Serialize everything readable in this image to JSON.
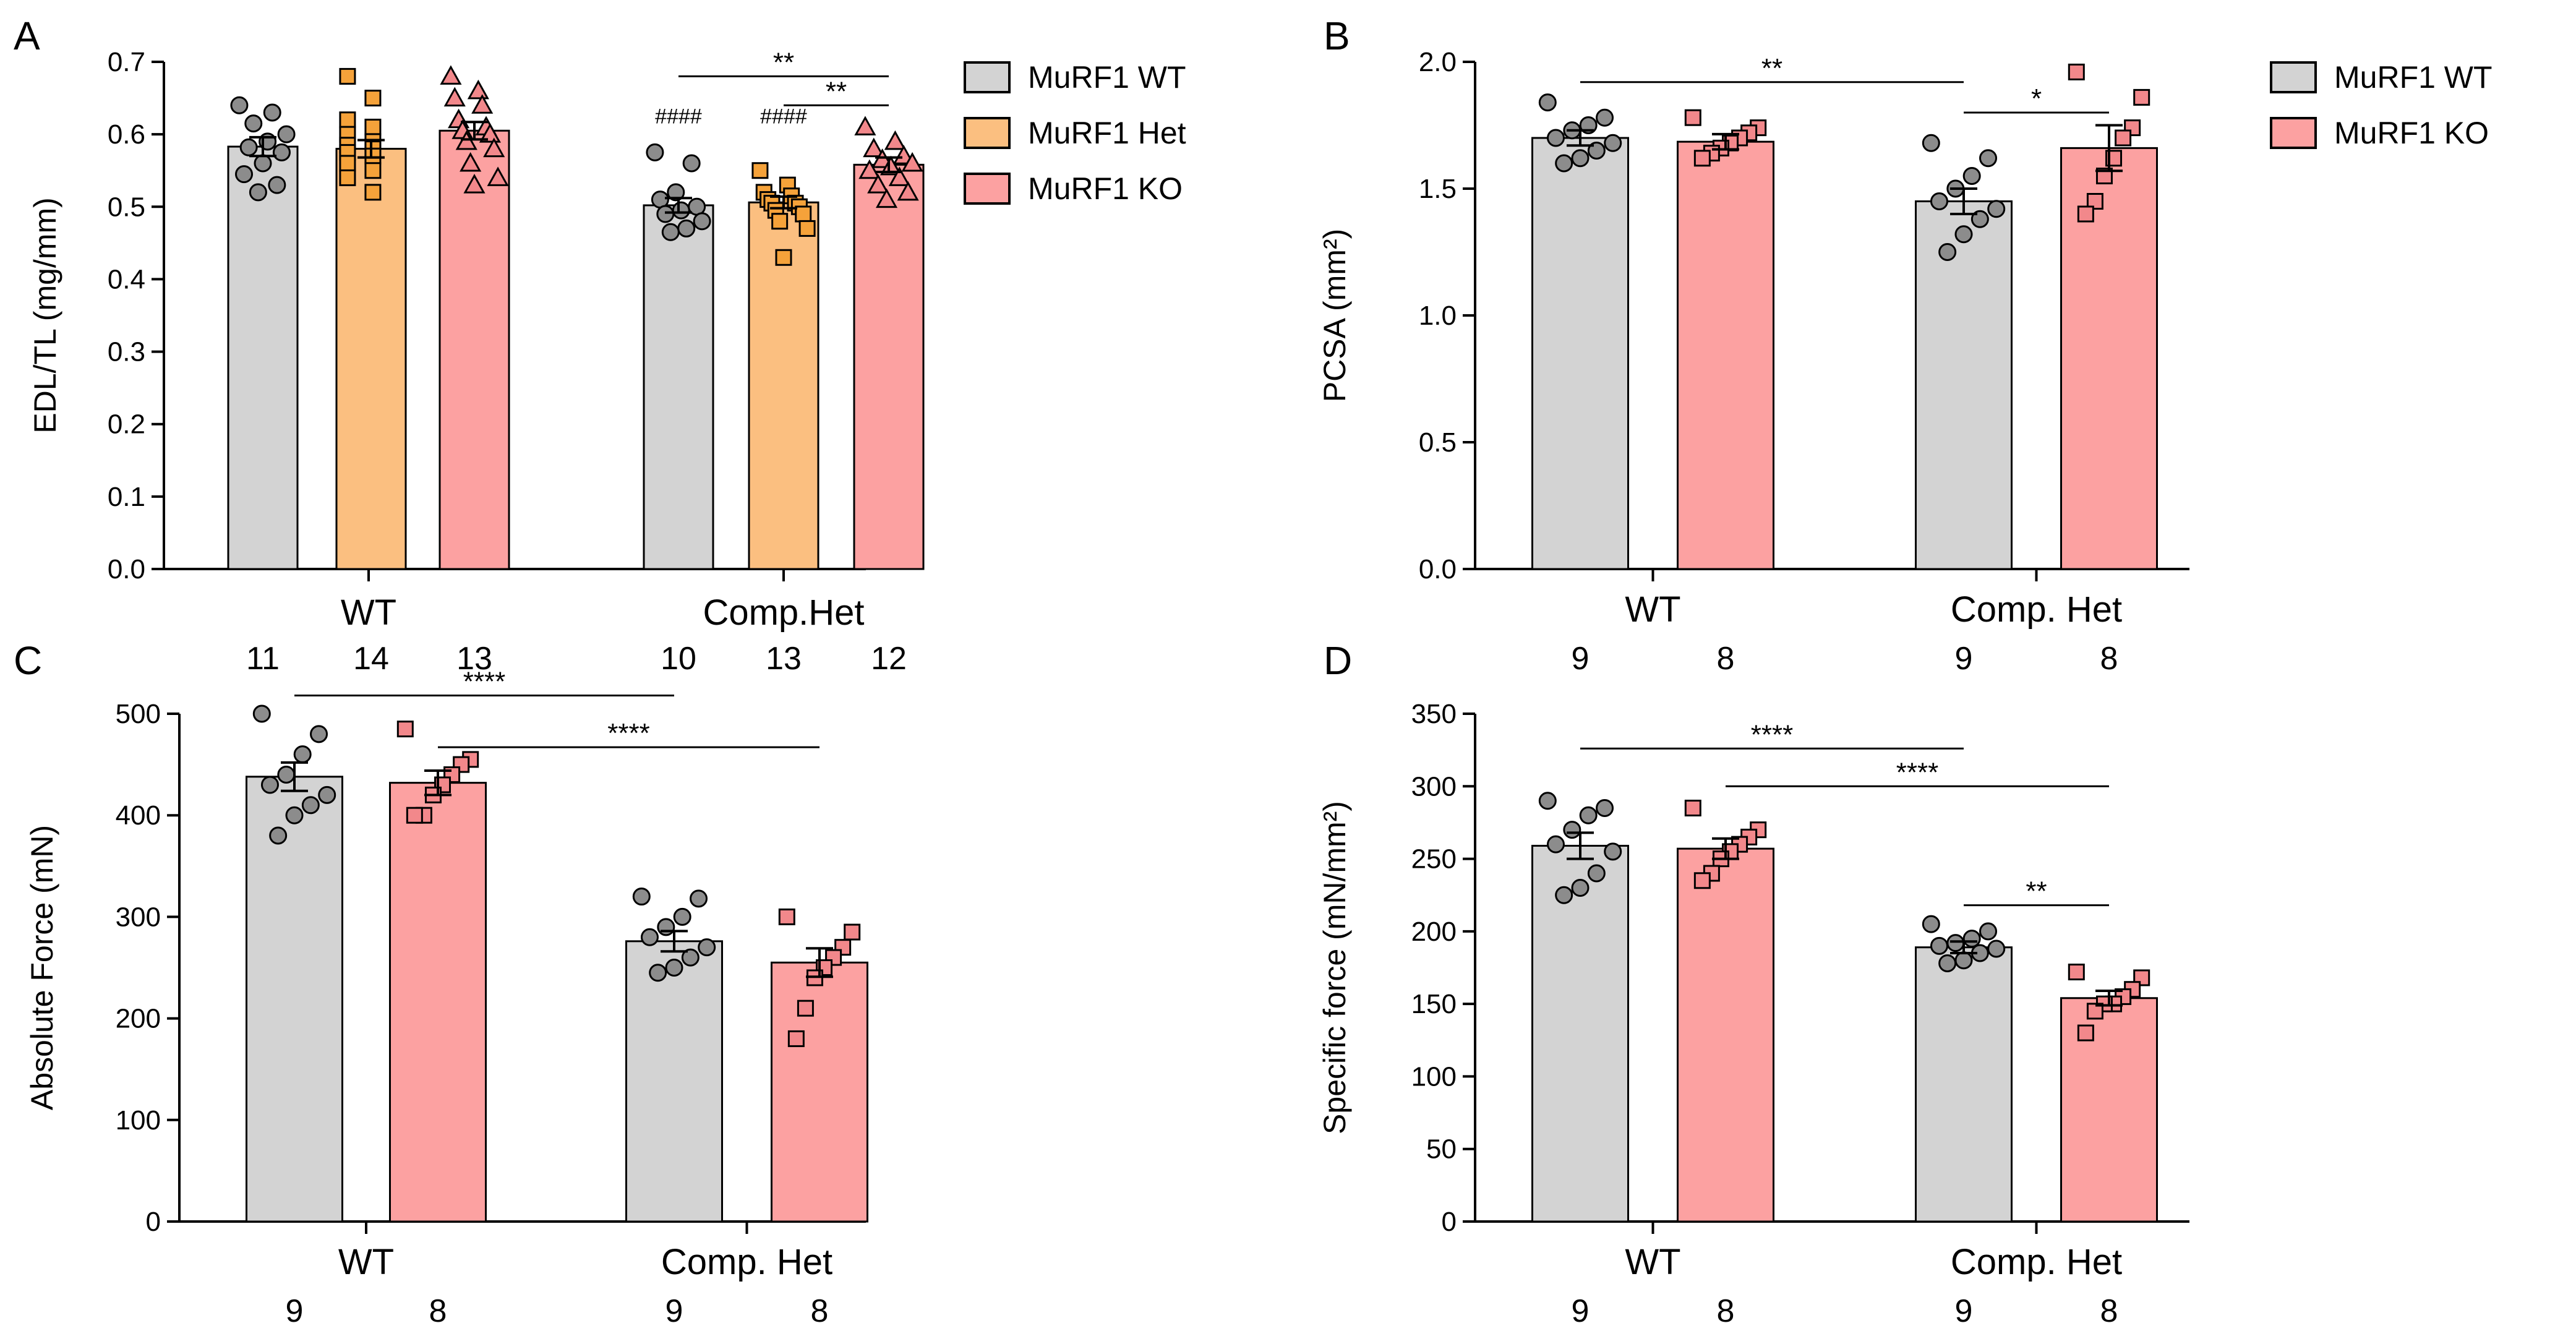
{
  "colors": {
    "wt_bar": "#d3d3d3",
    "het_bar": "#fbbf80",
    "ko_bar": "#fca1a1",
    "wt_point": "#8c8c8c",
    "het_point": "#f5a23a",
    "ko_point": "#f2888b",
    "outline": "#000000"
  },
  "chart_data": [
    {
      "type": "bar",
      "panel": "A",
      "ylabel": "EDL/TL (mg/mm)",
      "ylim": [
        0,
        0.7
      ],
      "yticks": [
        0.0,
        0.1,
        0.2,
        0.3,
        0.4,
        0.5,
        0.6,
        0.7
      ],
      "tick_decimals": 1,
      "groups": [
        "WT",
        "Comp.Het"
      ],
      "series": [
        {
          "name": "MuRF1 WT",
          "color_key": "wt",
          "marker": "circle",
          "values": [
            0.583,
            0.502
          ],
          "sem": [
            0.013,
            0.01
          ],
          "n": [
            "11",
            "10"
          ],
          "points": [
            [
              0.64,
              0.63,
              0.615,
              0.6,
              0.59,
              0.582,
              0.575,
              0.56,
              0.545,
              0.53,
              0.52
            ],
            [
              0.575,
              0.56,
              0.52,
              0.51,
              0.5,
              0.495,
              0.49,
              0.48,
              0.47,
              0.465
            ]
          ]
        },
        {
          "name": "MuRF1 Het",
          "color_key": "het",
          "marker": "square",
          "values": [
            0.58,
            0.506
          ],
          "sem": [
            0.012,
            0.008
          ],
          "n": [
            "14",
            "13"
          ],
          "points": [
            [
              0.68,
              0.65,
              0.62,
              0.61,
              0.6,
              0.59,
              0.585,
              0.58,
              0.575,
              0.57,
              0.56,
              0.55,
              0.54,
              0.52
            ],
            [
              0.55,
              0.53,
              0.52,
              0.515,
              0.51,
              0.505,
              0.505,
              0.5,
              0.495,
              0.49,
              0.48,
              0.47,
              0.43
            ]
          ]
        },
        {
          "name": "MuRF1 KO",
          "color_key": "ko",
          "marker": "triangle",
          "values": [
            0.605,
            0.558
          ],
          "sem": [
            0.012,
            0.01
          ],
          "n": [
            "13",
            "12"
          ],
          "points": [
            [
              0.68,
              0.66,
              0.65,
              0.64,
              0.62,
              0.61,
              0.605,
              0.6,
              0.59,
              0.58,
              0.56,
              0.54,
              0.53
            ],
            [
              0.61,
              0.59,
              0.58,
              0.57,
              0.565,
              0.56,
              0.555,
              0.55,
              0.54,
              0.53,
              0.52,
              0.51
            ]
          ]
        }
      ],
      "annotations": [
        {
          "type": "above-bar",
          "series": 0,
          "group": 1,
          "text": "####",
          "y": 0.615
        },
        {
          "type": "above-bar",
          "series": 1,
          "group": 1,
          "text": "####",
          "y": 0.615
        },
        {
          "type": "bracket",
          "from": [
            0,
            1
          ],
          "to": [
            2,
            1
          ],
          "y": 0.68,
          "text": "**"
        },
        {
          "type": "bracket",
          "from": [
            1,
            1
          ],
          "to": [
            2,
            1
          ],
          "y": 0.64,
          "text": "**"
        }
      ],
      "legend": [
        "MuRF1 WT",
        "MuRF1 Het",
        "MuRF1 KO"
      ],
      "legend_position": "right"
    },
    {
      "type": "bar",
      "panel": "B",
      "ylabel": "PCSA (mm²)",
      "ylim": [
        0,
        2.0
      ],
      "yticks": [
        0.0,
        0.5,
        1.0,
        1.5,
        2.0
      ],
      "tick_decimals": 1,
      "groups": [
        "WT",
        "Comp. Het"
      ],
      "series": [
        {
          "name": "MuRF1 WT",
          "color_key": "wt",
          "marker": "circle",
          "values": [
            1.7,
            1.45
          ],
          "sem": [
            0.03,
            0.05
          ],
          "n": [
            "9",
            "9"
          ],
          "points": [
            [
              1.84,
              1.78,
              1.75,
              1.73,
              1.7,
              1.68,
              1.65,
              1.62,
              1.6
            ],
            [
              1.68,
              1.62,
              1.55,
              1.5,
              1.45,
              1.42,
              1.38,
              1.32,
              1.25
            ]
          ]
        },
        {
          "name": "MuRF1 KO",
          "color_key": "ko",
          "marker": "square",
          "values": [
            1.685,
            1.66
          ],
          "sem": [
            0.03,
            0.09
          ],
          "n": [
            "8",
            "8"
          ],
          "points": [
            [
              1.78,
              1.74,
              1.72,
              1.7,
              1.68,
              1.66,
              1.64,
              1.62
            ],
            [
              1.96,
              1.86,
              1.74,
              1.7,
              1.62,
              1.55,
              1.45,
              1.4
            ]
          ]
        }
      ],
      "annotations": [
        {
          "type": "bracket",
          "from": [
            0,
            0
          ],
          "to": [
            0,
            1
          ],
          "y": 1.92,
          "text": "**"
        },
        {
          "type": "bracket",
          "from": [
            0,
            1
          ],
          "to": [
            1,
            1
          ],
          "y": 1.8,
          "text": "*"
        }
      ],
      "legend": [
        "MuRF1 WT",
        "MuRF1 KO"
      ],
      "legend_position": "right"
    },
    {
      "type": "bar",
      "panel": "C",
      "ylabel": "Absolute Force (mN)",
      "ylim": [
        0,
        500
      ],
      "yticks": [
        0,
        100,
        200,
        300,
        400,
        500
      ],
      "tick_decimals": 0,
      "groups": [
        "WT",
        "Comp. Het"
      ],
      "series": [
        {
          "name": "MuRF1 WT",
          "color_key": "wt",
          "marker": "circle",
          "values": [
            438,
            276
          ],
          "sem": [
            14,
            10
          ],
          "n": [
            "9",
            "9"
          ],
          "points": [
            [
              500,
              480,
              460,
              440,
              430,
              420,
              410,
              400,
              380
            ],
            [
              320,
              318,
              300,
              290,
              280,
              270,
              260,
              250,
              245
            ]
          ]
        },
        {
          "name": "MuRF1 KO",
          "color_key": "ko",
          "marker": "square",
          "values": [
            432,
            255
          ],
          "sem": [
            12,
            14
          ],
          "n": [
            "8",
            "8"
          ],
          "points": [
            [
              485,
              455,
              450,
              440,
              430,
              420,
              400,
              400
            ],
            [
              300,
              285,
              270,
              260,
              250,
              240,
              210,
              180
            ]
          ]
        }
      ],
      "annotations": [
        {
          "type": "bracket",
          "from": [
            0,
            0
          ],
          "to": [
            0,
            1
          ],
          "y": 518,
          "text": "****"
        },
        {
          "type": "bracket",
          "from": [
            1,
            0
          ],
          "to": [
            1,
            1
          ],
          "y": 467,
          "text": "****"
        }
      ],
      "legend": [],
      "legend_position": "none"
    },
    {
      "type": "bar",
      "panel": "D",
      "ylabel": "Specific force (mN/mm²)",
      "ylim": [
        0,
        350
      ],
      "yticks": [
        0,
        50,
        100,
        150,
        200,
        250,
        300,
        350
      ],
      "tick_decimals": 0,
      "groups": [
        "WT",
        "Comp. Het"
      ],
      "series": [
        {
          "name": "MuRF1 WT",
          "color_key": "wt",
          "marker": "circle",
          "values": [
            259,
            189
          ],
          "sem": [
            9,
            4
          ],
          "n": [
            "9",
            "9"
          ],
          "points": [
            [
              290,
              285,
              280,
              270,
              260,
              255,
              240,
              230,
              225
            ],
            [
              205,
              200,
              195,
              192,
              190,
              188,
              185,
              180,
              178
            ]
          ]
        },
        {
          "name": "MuRF1 KO",
          "color_key": "ko",
          "marker": "square",
          "values": [
            257,
            154
          ],
          "sem": [
            7,
            5
          ],
          "n": [
            "8",
            "8"
          ],
          "points": [
            [
              285,
              270,
              265,
              260,
              255,
              250,
              240,
              235
            ],
            [
              172,
              168,
              160,
              155,
              150,
              150,
              145,
              130
            ]
          ]
        }
      ],
      "annotations": [
        {
          "type": "bracket",
          "from": [
            0,
            0
          ],
          "to": [
            0,
            1
          ],
          "y": 326,
          "text": "****"
        },
        {
          "type": "bracket",
          "from": [
            1,
            0
          ],
          "to": [
            1,
            1
          ],
          "y": 300,
          "text": "****"
        },
        {
          "type": "bracket",
          "from": [
            0,
            1
          ],
          "to": [
            1,
            1
          ],
          "y": 218,
          "text": "**"
        }
      ],
      "legend": [],
      "legend_position": "none"
    }
  ]
}
